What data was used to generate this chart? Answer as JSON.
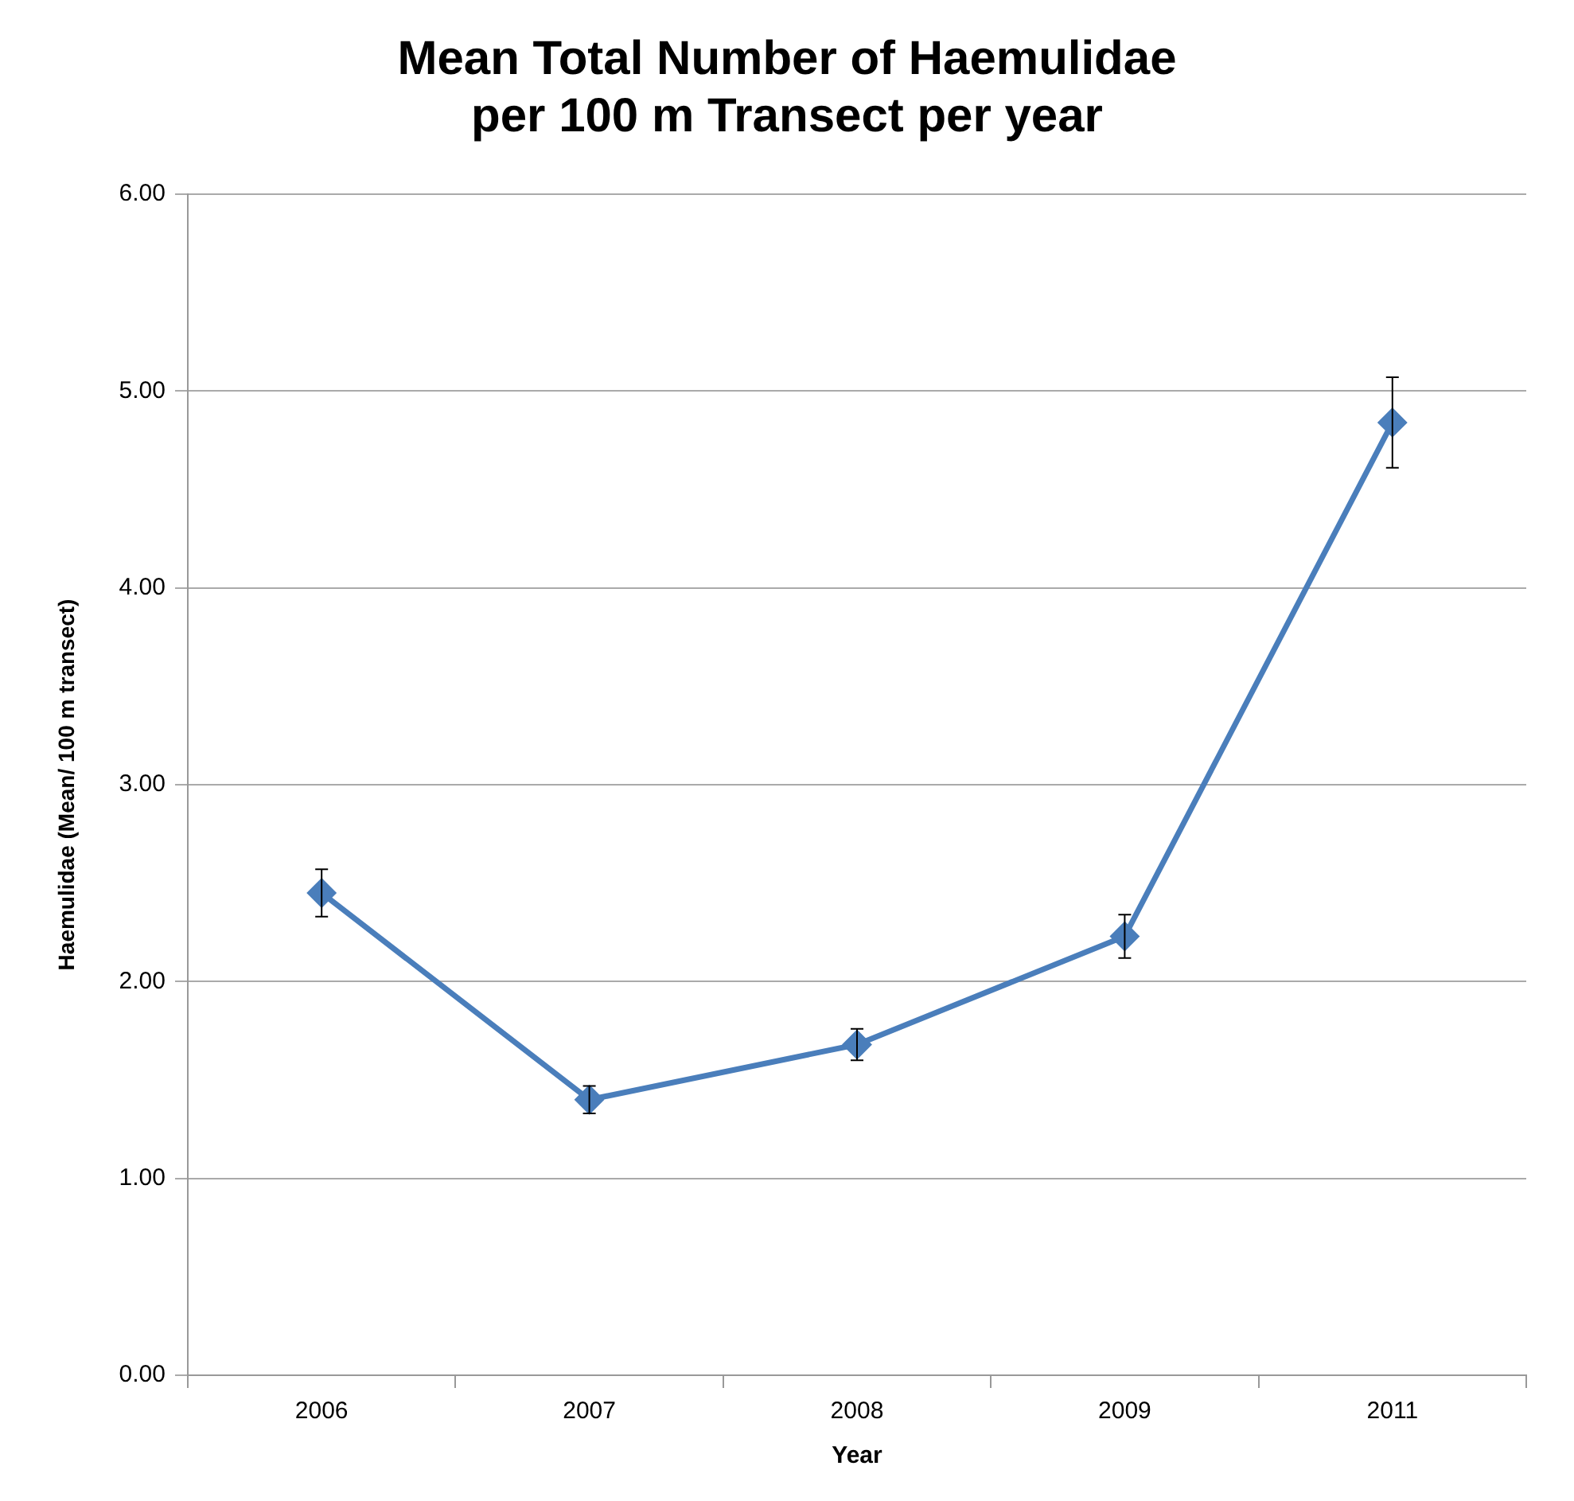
{
  "chart_data": {
    "type": "line",
    "title": "Mean Total Number of Haemulidae\nper 100 m Transect per year",
    "xlabel": "Year",
    "ylabel": "Haemulidae (Mean/ 100 m transect)",
    "categories": [
      "2006",
      "2007",
      "2008",
      "2009",
      "2011"
    ],
    "series": [
      {
        "color": "#4a7ebb",
        "values": [
          2.45,
          1.4,
          1.68,
          2.23,
          4.84
        ],
        "errors": [
          0.12,
          0.07,
          0.08,
          0.11,
          0.23
        ]
      }
    ],
    "ylim": [
      0,
      6
    ],
    "yticks": [
      {
        "value": 0,
        "label": "0.00"
      },
      {
        "value": 1,
        "label": "1.00"
      },
      {
        "value": 2,
        "label": "2.00"
      },
      {
        "value": 3,
        "label": "3.00"
      },
      {
        "value": 4,
        "label": "4.00"
      },
      {
        "value": 5,
        "label": "5.00"
      },
      {
        "value": 6,
        "label": "6.00"
      }
    ],
    "grid": "y",
    "legend": false,
    "marker": "diamond",
    "line_style": "solid"
  }
}
